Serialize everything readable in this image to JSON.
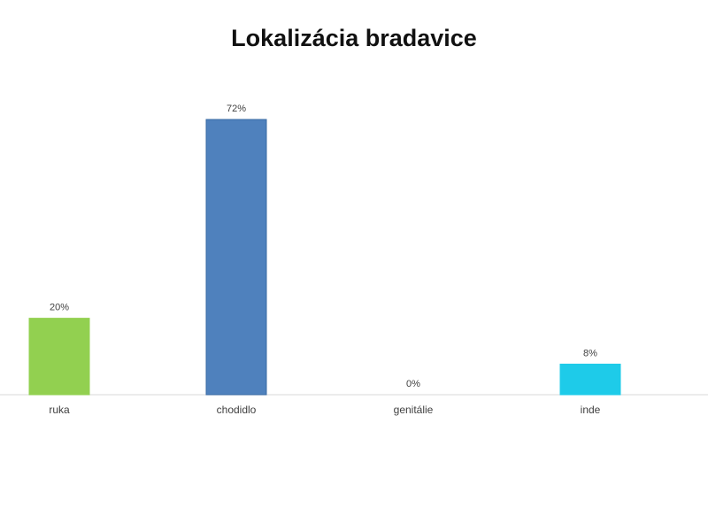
{
  "chart_data": {
    "type": "bar",
    "title": "Lokalizácia bradavice",
    "categories": [
      "ruka",
      "chodidlo",
      "genitálie",
      "inde"
    ],
    "values": [
      20,
      72,
      0,
      8
    ],
    "value_labels": [
      "20%",
      "72%",
      "0%",
      "8%"
    ],
    "colors": [
      "#92d050",
      "#4f81bd",
      "#4f81bd",
      "#1ecbe9"
    ],
    "ylim": [
      0,
      100
    ],
    "grid": false,
    "legend": "none",
    "xlabel": "",
    "ylabel": ""
  }
}
